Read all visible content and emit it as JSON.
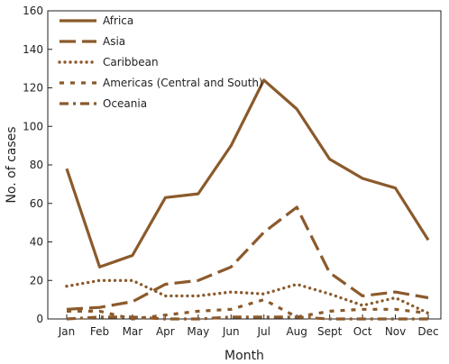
{
  "chart_data": {
    "type": "line",
    "xlabel": "Month",
    "ylabel": "No. of cases",
    "ylim": [
      0,
      160
    ],
    "yticks": [
      0,
      20,
      40,
      60,
      80,
      100,
      120,
      140,
      160
    ],
    "categories": [
      "Jan",
      "Feb",
      "Mar",
      "Apr",
      "May",
      "Jun",
      "Jul",
      "Aug",
      "Sept",
      "Oct",
      "Nov",
      "Dec"
    ],
    "grid": false,
    "legend_position": "top-left",
    "line_color": "#8b5a2b",
    "series": [
      {
        "name": "Africa",
        "style": "solid",
        "values": [
          78,
          27,
          33,
          63,
          65,
          90,
          124,
          109,
          83,
          73,
          68,
          41
        ]
      },
      {
        "name": "Asia",
        "style": "long-dash",
        "values": [
          5,
          6,
          9,
          18,
          20,
          27,
          45,
          58,
          24,
          12,
          14,
          11
        ]
      },
      {
        "name": "Caribbean",
        "style": "dotted",
        "values": [
          17,
          20,
          20,
          12,
          12,
          14,
          13,
          18,
          13,
          7,
          11,
          3
        ]
      },
      {
        "name": "Americas (Central and South)",
        "style": "short-dash",
        "values": [
          4,
          4,
          0,
          2,
          4,
          5,
          10,
          1,
          4,
          5,
          5,
          3
        ]
      },
      {
        "name": "Oceania",
        "style": "dash-dot",
        "values": [
          0,
          1,
          1,
          0,
          0,
          1,
          1,
          1,
          0,
          0,
          0,
          0
        ]
      }
    ]
  }
}
